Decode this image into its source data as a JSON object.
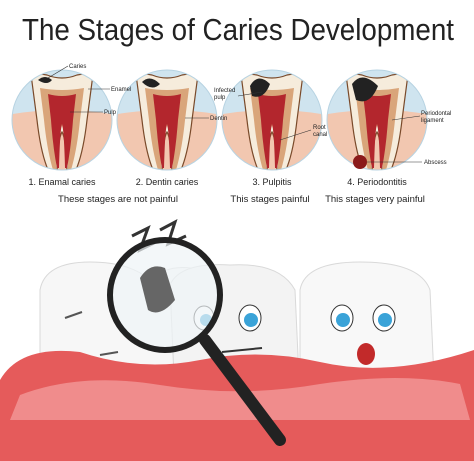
{
  "title": "The Stages of Caries Development",
  "stages": [
    {
      "caption": "1. Enamal caries",
      "labels": [
        [
          "Caries"
        ],
        [
          "Enamel"
        ],
        [
          "Pulp"
        ]
      ]
    },
    {
      "caption": "2. Dentin caries",
      "labels": [
        [
          "Dentin"
        ]
      ]
    },
    {
      "caption": "3. Pulpitis",
      "labels": [
        [
          "Infected",
          "pulp"
        ],
        [
          "Root",
          "canal"
        ]
      ]
    },
    {
      "caption": "4. Periodontitis",
      "labels": [
        [
          "Periodontal",
          "ligament"
        ],
        [
          "Abscess"
        ]
      ]
    }
  ],
  "pain_notes": [
    "These stages are not painful",
    "This stages painful",
    "This stages very painful"
  ]
}
